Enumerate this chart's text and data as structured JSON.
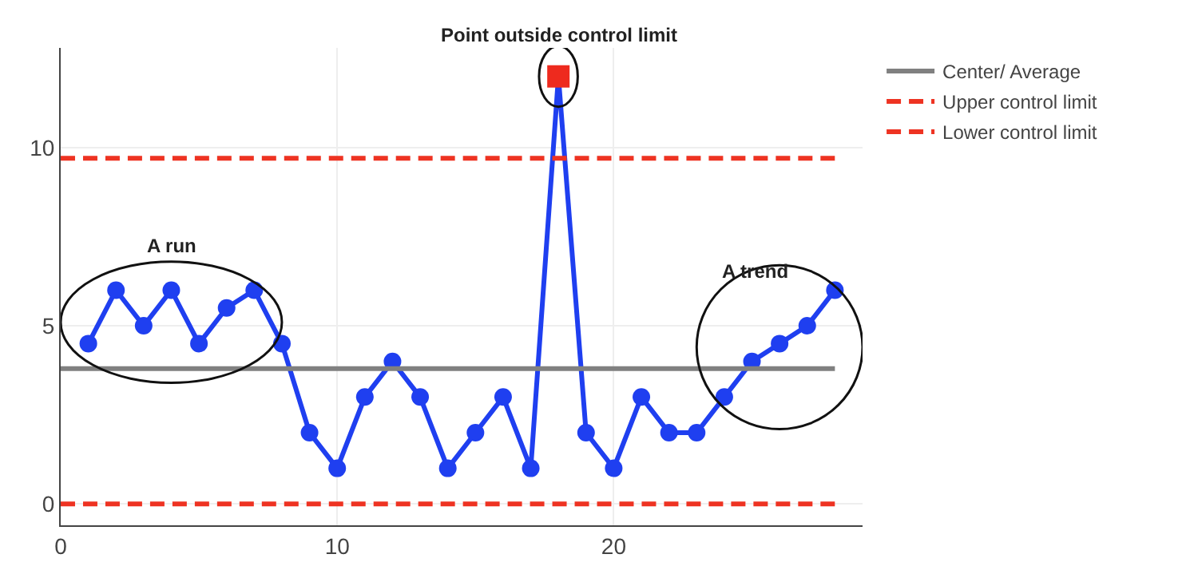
{
  "chart_data": {
    "type": "line",
    "xlim": [
      0,
      29
    ],
    "ylim": [
      -0.6,
      12.8
    ],
    "xticks": [
      0,
      10,
      20
    ],
    "yticks": [
      0,
      5,
      10
    ],
    "grid": true,
    "legend": "top right",
    "line_style": "solid",
    "series": [
      {
        "color": "#1f3ff0",
        "marker": "circle",
        "x": [
          1,
          2,
          3,
          4,
          5,
          6,
          7,
          8,
          9,
          10,
          11,
          12,
          13,
          14,
          15,
          16,
          17,
          18,
          19,
          20,
          21,
          22,
          23,
          24,
          25,
          26,
          27,
          28
        ],
        "values": [
          4.5,
          6,
          5,
          6,
          4.5,
          5.5,
          6,
          4.5,
          2,
          1,
          3,
          4,
          3,
          1,
          2,
          3,
          1,
          12,
          2,
          1,
          3,
          2,
          2,
          3,
          4,
          4.5,
          5,
          6
        ]
      },
      {
        "type": "scatter",
        "color": "#ee2a1e",
        "marker": "square",
        "x": [
          18
        ],
        "values": [
          12
        ]
      },
      {
        "name": "Center/ Average",
        "color": "#808080",
        "marker": "none",
        "x": [
          0,
          28
        ],
        "values": [
          3.8,
          3.8
        ]
      },
      {
        "name": "Upper control limit",
        "color": "#ee3322",
        "marker": "none",
        "line_style": "dashed",
        "x": [
          0,
          28
        ],
        "values": [
          9.7,
          9.7
        ]
      },
      {
        "name": "Lower control limit",
        "color": "#ee3322",
        "marker": "none",
        "line_style": "dashed",
        "x": [
          0,
          28
        ],
        "values": [
          0,
          0
        ]
      }
    ],
    "annotations": [
      {
        "text": "A run",
        "x": 4,
        "y": 6
      },
      {
        "text": "A trend",
        "x": 28,
        "y": 6
      },
      {
        "text": "Point outside control limit",
        "x": 18,
        "y": 12
      }
    ]
  }
}
